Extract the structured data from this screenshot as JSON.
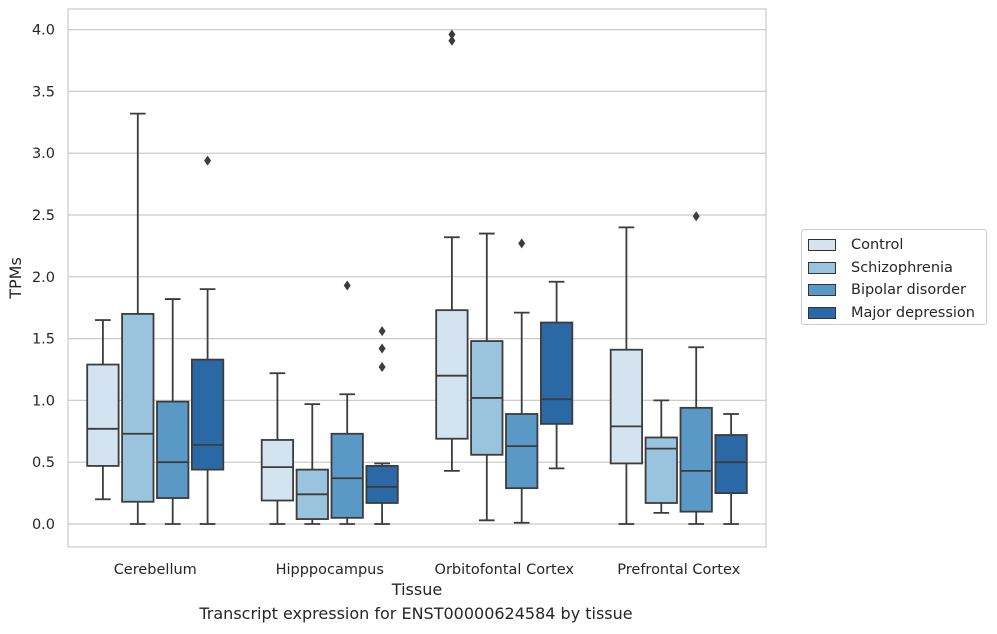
{
  "chart_data": {
    "type": "box",
    "title": "",
    "xlabel": "Tissue",
    "ylabel": "TPMs",
    "ylim": [
      -0.2,
      4.17
    ],
    "yticks": [
      "0.0",
      "0.5",
      "1.0",
      "1.5",
      "2.0",
      "2.5",
      "3.0",
      "3.5",
      "4.0"
    ],
    "grid": "horizontal",
    "legend_position": "right",
    "categories": [
      "Cerebellum",
      "Hipppocampus",
      "Orbitofontal Cortex",
      "Prefrontal Cortex"
    ],
    "series": [
      {
        "name": "Control",
        "color": "#d3e3f0",
        "boxes": [
          {
            "whisker_low": 0.2,
            "q1": 0.47,
            "median": 0.77,
            "q3": 1.29,
            "whisker_high": 1.65,
            "outliers": []
          },
          {
            "whisker_low": 0.0,
            "q1": 0.19,
            "median": 0.46,
            "q3": 0.68,
            "whisker_high": 1.22,
            "outliers": []
          },
          {
            "whisker_low": 0.43,
            "q1": 0.69,
            "median": 1.2,
            "q3": 1.73,
            "whisker_high": 2.32,
            "outliers": [
              3.91,
              3.96
            ]
          },
          {
            "whisker_low": 0.0,
            "q1": 0.49,
            "median": 0.79,
            "q3": 1.41,
            "whisker_high": 2.4,
            "outliers": []
          }
        ]
      },
      {
        "name": "Schizophrenia",
        "color": "#9ac3dd",
        "boxes": [
          {
            "whisker_low": 0.0,
            "q1": 0.18,
            "median": 0.73,
            "q3": 1.7,
            "whisker_high": 3.32,
            "outliers": []
          },
          {
            "whisker_low": 0.0,
            "q1": 0.04,
            "median": 0.24,
            "q3": 0.44,
            "whisker_high": 0.97,
            "outliers": []
          },
          {
            "whisker_low": 0.03,
            "q1": 0.56,
            "median": 1.02,
            "q3": 1.48,
            "whisker_high": 2.35,
            "outliers": []
          },
          {
            "whisker_low": 0.09,
            "q1": 0.17,
            "median": 0.61,
            "q3": 0.7,
            "whisker_high": 1.0,
            "outliers": []
          }
        ]
      },
      {
        "name": "Bipolar disorder",
        "color": "#5a99c6",
        "boxes": [
          {
            "whisker_low": 0.0,
            "q1": 0.21,
            "median": 0.5,
            "q3": 0.99,
            "whisker_high": 1.82,
            "outliers": []
          },
          {
            "whisker_low": 0.0,
            "q1": 0.05,
            "median": 0.37,
            "q3": 0.73,
            "whisker_high": 1.05,
            "outliers": [
              1.93
            ]
          },
          {
            "whisker_low": 0.01,
            "q1": 0.29,
            "median": 0.63,
            "q3": 0.89,
            "whisker_high": 1.71,
            "outliers": [
              2.27
            ]
          },
          {
            "whisker_low": 0.0,
            "q1": 0.1,
            "median": 0.43,
            "q3": 0.94,
            "whisker_high": 1.43,
            "outliers": [
              2.49
            ]
          }
        ]
      },
      {
        "name": "Major depression",
        "color": "#2a69a6",
        "boxes": [
          {
            "whisker_low": 0.0,
            "q1": 0.44,
            "median": 0.64,
            "q3": 1.33,
            "whisker_high": 1.9,
            "outliers": [
              2.94
            ]
          },
          {
            "whisker_low": 0.0,
            "q1": 0.17,
            "median": 0.3,
            "q3": 0.47,
            "whisker_high": 0.49,
            "outliers": [
              1.27,
              1.42,
              1.56
            ]
          },
          {
            "whisker_low": 0.45,
            "q1": 0.81,
            "median": 1.01,
            "q3": 1.63,
            "whisker_high": 1.96,
            "outliers": []
          },
          {
            "whisker_low": 0.0,
            "q1": 0.25,
            "median": 0.5,
            "q3": 0.72,
            "whisker_high": 0.89,
            "outliers": []
          }
        ]
      }
    ]
  },
  "caption": "Transcript expression for ENST00000624584 by tissue"
}
